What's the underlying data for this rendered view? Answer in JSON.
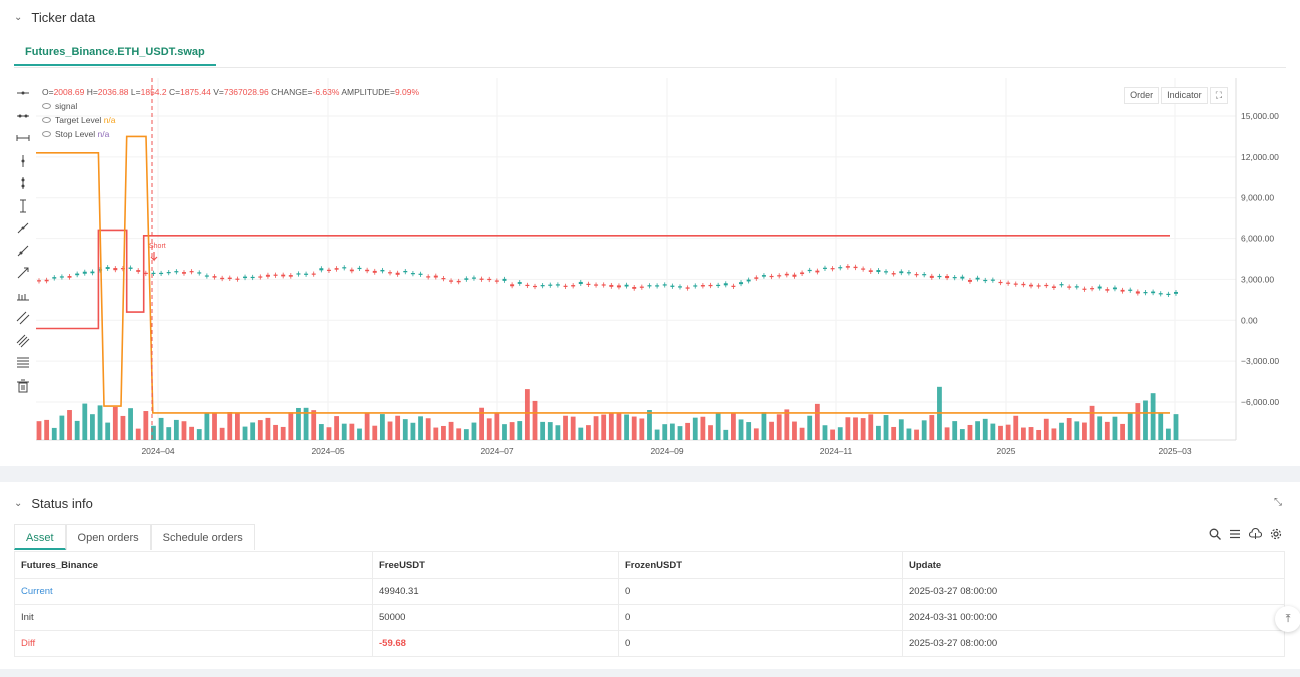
{
  "ticker_section": {
    "title": "Ticker data",
    "tab": "Futures_Binance.ETH_USDT.swap"
  },
  "legend": {
    "ohlc": "O=2008.69 H=2036.88 L=1854.2 C=1875.44 V=7367028.96 CHANGE=-6.63% AMPLITUDE=9.09%",
    "o": "2008.69",
    "h": "2036.88",
    "l": "1854.2",
    "c": "1875.44",
    "v": "7367028.96",
    "change": "-6.63%",
    "amplitude": "9.09%",
    "series": [
      {
        "name": "signal",
        "value": ""
      },
      {
        "name": "Target Level",
        "value": "n/a"
      },
      {
        "name": "Stop Level",
        "value": "n/a"
      }
    ]
  },
  "chart_buttons": {
    "order": "Order",
    "indicator": "Indicator"
  },
  "chart_data": {
    "type": "candlestick",
    "y_ticks": [
      "15,000.00",
      "12,000.00",
      "9,000.00",
      "6,000.00",
      "3,000.00",
      "0.00",
      "−3,000.00",
      "−6,000.00"
    ],
    "x_ticks": [
      "2024–04",
      "2024–05",
      "2024–07",
      "2024–09",
      "2024–11",
      "2025",
      "2025–03"
    ],
    "ylim": [
      -9000,
      17000
    ],
    "annotation": "Short",
    "price_path": [
      3000,
      3100,
      3250,
      3500,
      3900,
      3700,
      3400,
      3550,
      3600,
      3200,
      3150,
      3100,
      3300,
      3400,
      3250,
      3700,
      3800,
      3750,
      3600,
      3500,
      3400,
      3200,
      2900,
      3100,
      3000,
      2700,
      2500,
      2550,
      2600,
      2700,
      2650,
      2500,
      2450,
      2550,
      2450,
      2600,
      2500,
      2600,
      3200,
      3300,
      3400,
      3700,
      3900,
      4000,
      3600,
      3500,
      3400,
      3300,
      3200,
      3000,
      2900,
      2800,
      2700,
      2600,
      2500,
      2400,
      2300,
      2200,
      2100,
      2000,
      1900
    ],
    "target_level": {
      "points": [
        [
          0,
          -600
        ],
        [
          0.055,
          -600
        ],
        [
          0.055,
          6600
        ],
        [
          0.08,
          6600
        ],
        [
          0.08,
          600
        ],
        [
          0.095,
          600
        ],
        [
          0.095,
          6200
        ],
        [
          1,
          6200
        ]
      ]
    },
    "stop_level": {
      "points": [
        [
          0,
          12300
        ],
        [
          0.055,
          12300
        ],
        [
          0.06,
          -6300
        ],
        [
          0.075,
          -6300
        ],
        [
          0.08,
          13500
        ],
        [
          0.097,
          13500
        ],
        [
          0.103,
          -6800
        ],
        [
          1,
          -6800
        ]
      ]
    },
    "colors": {
      "up": "#26a69a",
      "down": "#ef5350",
      "target": "#ef5350",
      "stop": "#f7931e"
    }
  },
  "status_section": {
    "title": "Status info",
    "tabs": [
      "Asset",
      "Open orders",
      "Schedule orders"
    ],
    "table": {
      "headers": [
        "Futures_Binance",
        "FreeUSDT",
        "FrozenUSDT",
        "Update"
      ],
      "rows": [
        [
          "Current",
          "49940.31",
          "0",
          "2025-03-27 08:00:00"
        ],
        [
          "Init",
          "50000",
          "0",
          "2024-03-31 00:00:00"
        ],
        [
          "Diff",
          "-59.68",
          "0",
          "2025-03-27 08:00:00"
        ]
      ]
    }
  },
  "icons": [
    "search-icon",
    "list-icon",
    "cloud-icon",
    "settings-icon",
    "expand-icon",
    "scroll-top-icon",
    "chevron-down-icon"
  ]
}
